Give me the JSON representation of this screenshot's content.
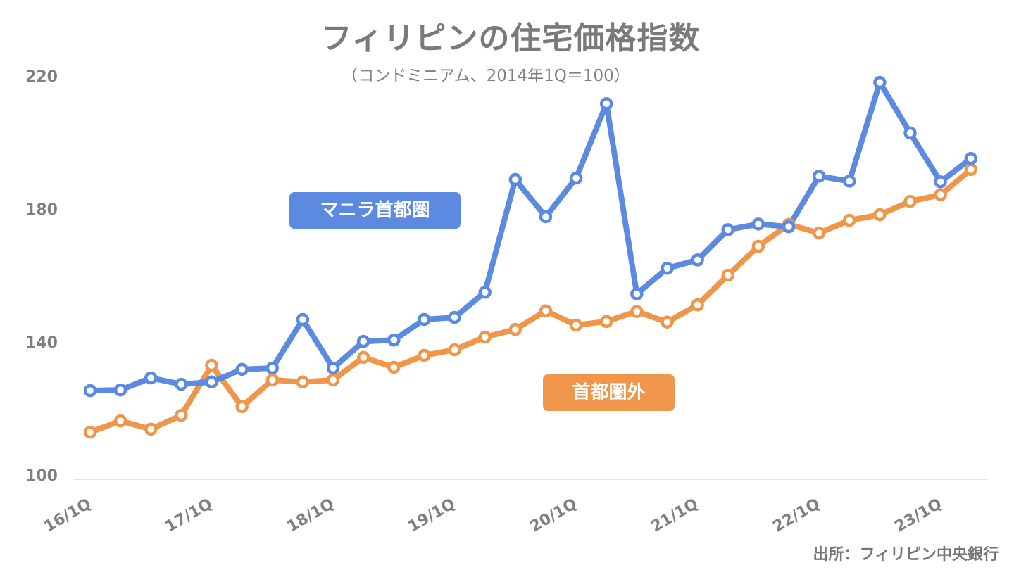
{
  "title": "フィリピンの住宅価格指数",
  "subtitle": "（コンドミニアム、2014年1Q＝100）",
  "source": "出所：フィリピン中央銀行",
  "y_ticks": [
    "220",
    "180",
    "140",
    "100"
  ],
  "x_ticks": [
    "16/1Q",
    "17/1Q",
    "18/1Q",
    "19/1Q",
    "20/1Q",
    "21/1Q",
    "22/1Q",
    "23/1Q"
  ],
  "legend": {
    "manila": "マニラ首都圏",
    "outside": "首都圏外"
  },
  "colors": {
    "manila": "#5b8ae0",
    "outside": "#f0964a",
    "axis_text": "#7f7f7f",
    "baseline": "#d9d9d9"
  },
  "chart_data": {
    "type": "line",
    "title": "フィリピンの住宅価格指数",
    "subtitle": "（コンドミニアム、2014年1Q＝100）",
    "xlabel": "",
    "ylabel": "",
    "ylim": [
      100,
      220
    ],
    "y_ticks": [
      100,
      140,
      180,
      220
    ],
    "grid": false,
    "legend_position": "inline labels",
    "categories": [
      "16/1Q",
      "16/2Q",
      "16/3Q",
      "16/4Q",
      "17/1Q",
      "17/2Q",
      "17/3Q",
      "17/4Q",
      "18/1Q",
      "18/2Q",
      "18/3Q",
      "18/4Q",
      "19/1Q",
      "19/2Q",
      "19/3Q",
      "19/4Q",
      "20/1Q",
      "20/2Q",
      "20/3Q",
      "20/4Q",
      "21/1Q",
      "21/2Q",
      "21/3Q",
      "21/4Q",
      "22/1Q",
      "22/2Q",
      "22/3Q",
      "22/4Q",
      "23/1Q",
      "23/2Q"
    ],
    "series": [
      {
        "name": "マニラ首都圏",
        "color": "#5b8ae0",
        "values": [
          125.8,
          126.0,
          129.6,
          127.7,
          128.4,
          132.2,
          132.6,
          147.2,
          132.6,
          140.6,
          141.0,
          147.2,
          147.8,
          155.4,
          189.3,
          178.1,
          189.7,
          212.1,
          154.9,
          162.6,
          165.1,
          174.2,
          175.9,
          175.1,
          190.3,
          188.8,
          218.5,
          203.3,
          188.6,
          195.6
        ]
      },
      {
        "name": "首都圏外",
        "color": "#f0964a",
        "values": [
          113.3,
          116.7,
          114.2,
          118.4,
          133.4,
          121.0,
          129.0,
          128.4,
          129.0,
          135.8,
          132.8,
          136.4,
          138.1,
          141.9,
          144.2,
          149.8,
          145.5,
          146.6,
          149.6,
          146.4,
          151.6,
          160.5,
          169.2,
          175.8,
          173.2,
          177.0,
          178.7,
          182.7,
          184.7,
          192.3
        ]
      }
    ],
    "source": "出所：フィリピン中央銀行",
    "source_text": "出所：フィリピン中央銀行"
  }
}
